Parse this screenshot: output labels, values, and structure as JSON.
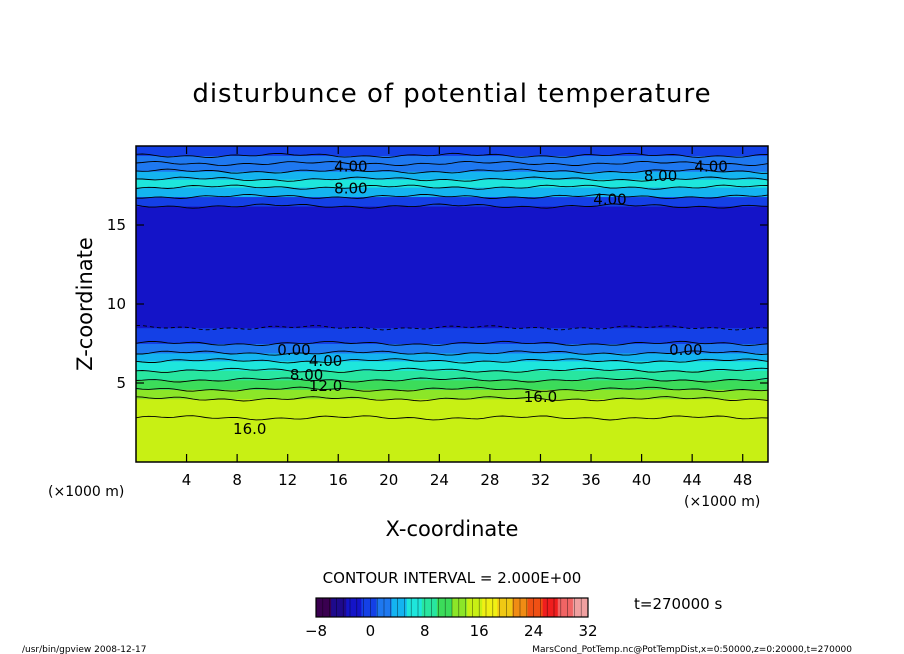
{
  "chart_data": {
    "type": "heatmap",
    "title": "disturbunce of potential temperature",
    "xlabel": "X-coordinate",
    "ylabel": "Z-coordinate",
    "x_unit_left": "(×1000 m)",
    "x_unit_right": "(×1000 m)",
    "xlim": [
      0,
      50
    ],
    "ylim": [
      0,
      20
    ],
    "x_ticks": [
      4,
      8,
      12,
      16,
      20,
      24,
      28,
      32,
      36,
      40,
      44,
      48
    ],
    "y_ticks": [
      5,
      10,
      15
    ],
    "contour_interval_text": "CONTOUR INTERVAL = 2.000E+00",
    "time_text": "t=270000 s",
    "colorbar": {
      "min": -8,
      "max": 32,
      "tick_labels": [
        "−8",
        "0",
        "8",
        "16",
        "24",
        "32"
      ],
      "tick_values": [
        -8,
        0,
        8,
        16,
        24,
        32
      ],
      "colors": [
        "#3a0050",
        "#1e0a8c",
        "#1414c8",
        "#1440e6",
        "#1e78f0",
        "#14b4f0",
        "#1ee6dc",
        "#28e6a0",
        "#3cdc5a",
        "#8ce628",
        "#c8f014",
        "#f0f014",
        "#f0c814",
        "#f08c14",
        "#f05014",
        "#f01e1e",
        "#f06464",
        "#f0a0a0"
      ]
    },
    "contour_labels": [
      {
        "text": "4.00",
        "x": 17.0,
        "z": 18.7
      },
      {
        "text": "4.00",
        "x": 45.5,
        "z": 18.7
      },
      {
        "text": "8.00",
        "x": 41.5,
        "z": 18.1
      },
      {
        "text": "8.00",
        "x": 17.0,
        "z": 17.3
      },
      {
        "text": "4.00",
        "x": 37.5,
        "z": 16.6
      },
      {
        "text": "0.00",
        "x": 12.5,
        "z": 7.1
      },
      {
        "text": "0.00",
        "x": 43.5,
        "z": 7.1
      },
      {
        "text": "4.00",
        "x": 15.0,
        "z": 6.4
      },
      {
        "text": "8.00",
        "x": 13.5,
        "z": 5.5
      },
      {
        "text": "12.0",
        "x": 15.0,
        "z": 4.8
      },
      {
        "text": "16.0",
        "x": 32.0,
        "z": 4.1
      },
      {
        "text": "16.0",
        "x": 9.0,
        "z": 2.1
      }
    ],
    "bands": [
      {
        "z0": 0.0,
        "z1": 2.8,
        "value": 15.0
      },
      {
        "z0": 2.8,
        "z1": 4.0,
        "value": 15.5
      },
      {
        "z0": 4.0,
        "z1": 4.6,
        "value": 13.5
      },
      {
        "z0": 4.6,
        "z1": 5.2,
        "value": 11.5
      },
      {
        "z0": 5.2,
        "z1": 5.8,
        "value": 9.5
      },
      {
        "z0": 5.8,
        "z1": 6.4,
        "value": 7.0
      },
      {
        "z0": 6.4,
        "z1": 6.9,
        "value": 4.5
      },
      {
        "z0": 6.9,
        "z1": 7.5,
        "value": 1.5
      },
      {
        "z0": 7.5,
        "z1": 8.5,
        "value": 0.0
      },
      {
        "z0": 8.5,
        "z1": 16.2,
        "value": -1.5
      },
      {
        "z0": 16.2,
        "z1": 16.8,
        "value": 0.5
      },
      {
        "z0": 16.8,
        "z1": 17.4,
        "value": 4.5
      },
      {
        "z0": 17.4,
        "z1": 17.9,
        "value": 6.5
      },
      {
        "z0": 17.9,
        "z1": 18.4,
        "value": 5.0
      },
      {
        "z0": 18.4,
        "z1": 18.9,
        "value": 3.0
      },
      {
        "z0": 18.9,
        "z1": 19.4,
        "value": 1.5
      },
      {
        "z0": 19.4,
        "z1": 20.0,
        "value": 0.5
      }
    ]
  },
  "footer": {
    "left": "/usr/bin/gpview   2008-12-17",
    "right": "MarsCond_PotTemp.nc@PotTempDist,x=0:50000,z=0:20000,t=270000"
  }
}
